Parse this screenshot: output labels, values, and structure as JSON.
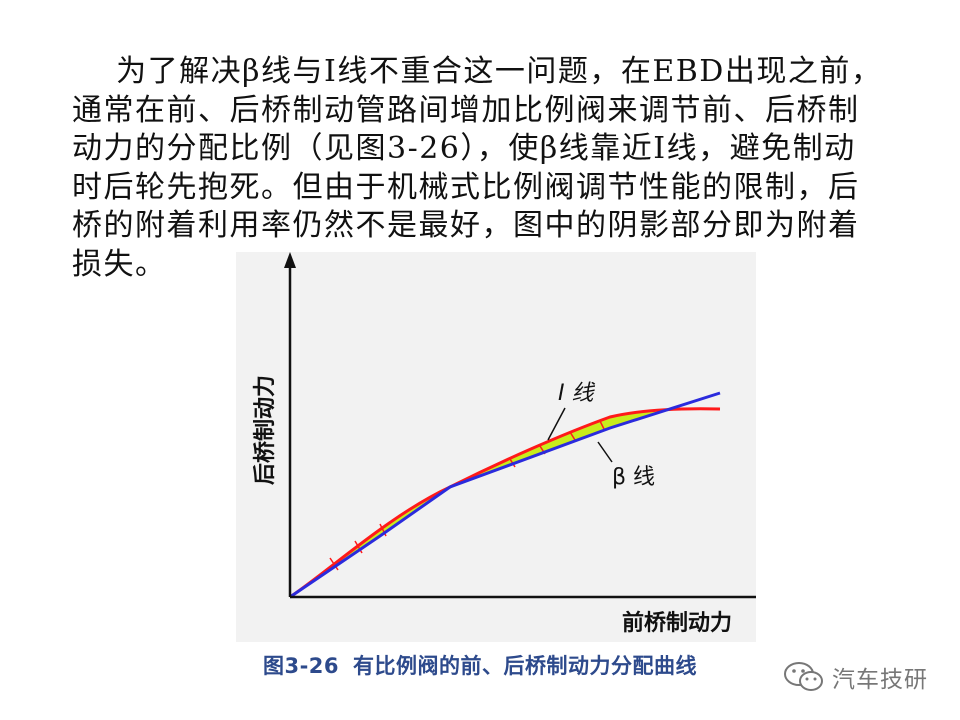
{
  "text": {
    "lines": [
      "    为了解决β线与I线不重合这一问题，在EBD出现之前，",
      "通常在前、后桥制动管路间增加比例阀来调节前、后桥制",
      "动力的分配比例（见图3-26），使β线靠近I线，避免制动",
      "时后轮先抱死。但由于机械式比例阀调节性能的限制，后",
      "桥的附着利用率仍然不是最好，图中的阴影部分即为附着",
      "损失。"
    ]
  },
  "diagram": {
    "y_axis_label": "后桥制动力",
    "x_axis_label": "前桥制动力",
    "i_line_label": "I 线",
    "beta_line_label": "β 线",
    "colors": {
      "i_line": "#ff1a1a",
      "beta_line": "#2b2bdd",
      "shade": "#c8ec1c",
      "axis": "#111111"
    }
  },
  "caption": {
    "number": "图3-26",
    "text": "有比例阀的前、后桥制动力分配曲线"
  },
  "watermark": {
    "text": "汽车技研",
    "icon": "wechat-icon"
  }
}
